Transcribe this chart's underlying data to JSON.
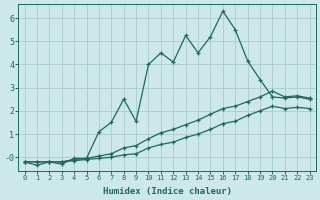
{
  "title": "",
  "xlabel": "Humidex (Indice chaleur)",
  "ylabel": "",
  "bg_color": "#cce8e8",
  "grid_color": "#b0d0d0",
  "line_color": "#1a6b5a",
  "xlim": [
    -0.5,
    23.5
  ],
  "ylim": [
    -0.6,
    6.6
  ],
  "xticks": [
    0,
    1,
    2,
    3,
    4,
    5,
    6,
    7,
    8,
    9,
    10,
    11,
    12,
    13,
    14,
    15,
    16,
    17,
    18,
    19,
    20,
    21,
    22,
    23
  ],
  "yticks": [
    0,
    1,
    2,
    3,
    4,
    5,
    6
  ],
  "ytick_labels": [
    "-0",
    "1",
    "2",
    "3",
    "4",
    "5",
    "6"
  ],
  "main_line_x": [
    0,
    1,
    2,
    3,
    4,
    5,
    6,
    7,
    8,
    9,
    10,
    11,
    12,
    13,
    14,
    15,
    16,
    17,
    18,
    19,
    20,
    21,
    22,
    23
  ],
  "main_line_y": [
    -0.2,
    -0.35,
    -0.2,
    -0.3,
    -0.05,
    -0.05,
    1.1,
    1.5,
    2.5,
    1.55,
    4.0,
    4.5,
    4.1,
    5.25,
    4.5,
    5.2,
    6.3,
    5.5,
    4.15,
    3.35,
    2.6,
    2.55,
    2.6,
    2.5
  ],
  "line2_x": [
    0,
    1,
    2,
    3,
    4,
    5,
    6,
    7,
    8,
    9,
    10,
    11,
    12,
    13,
    14,
    15,
    16,
    17,
    18,
    19,
    20,
    21,
    22,
    23
  ],
  "line2_y": [
    -0.2,
    -0.2,
    -0.2,
    -0.2,
    -0.1,
    -0.05,
    0.05,
    0.15,
    0.4,
    0.5,
    0.8,
    1.05,
    1.2,
    1.4,
    1.6,
    1.85,
    2.1,
    2.2,
    2.4,
    2.6,
    2.85,
    2.6,
    2.65,
    2.55
  ],
  "line3_x": [
    0,
    1,
    2,
    3,
    4,
    5,
    6,
    7,
    8,
    9,
    10,
    11,
    12,
    13,
    14,
    15,
    16,
    17,
    18,
    19,
    20,
    21,
    22,
    23
  ],
  "line3_y": [
    -0.2,
    -0.2,
    -0.2,
    -0.2,
    -0.15,
    -0.1,
    -0.05,
    0.0,
    0.1,
    0.15,
    0.4,
    0.55,
    0.65,
    0.85,
    1.0,
    1.2,
    1.45,
    1.55,
    1.8,
    2.0,
    2.2,
    2.1,
    2.15,
    2.1
  ]
}
